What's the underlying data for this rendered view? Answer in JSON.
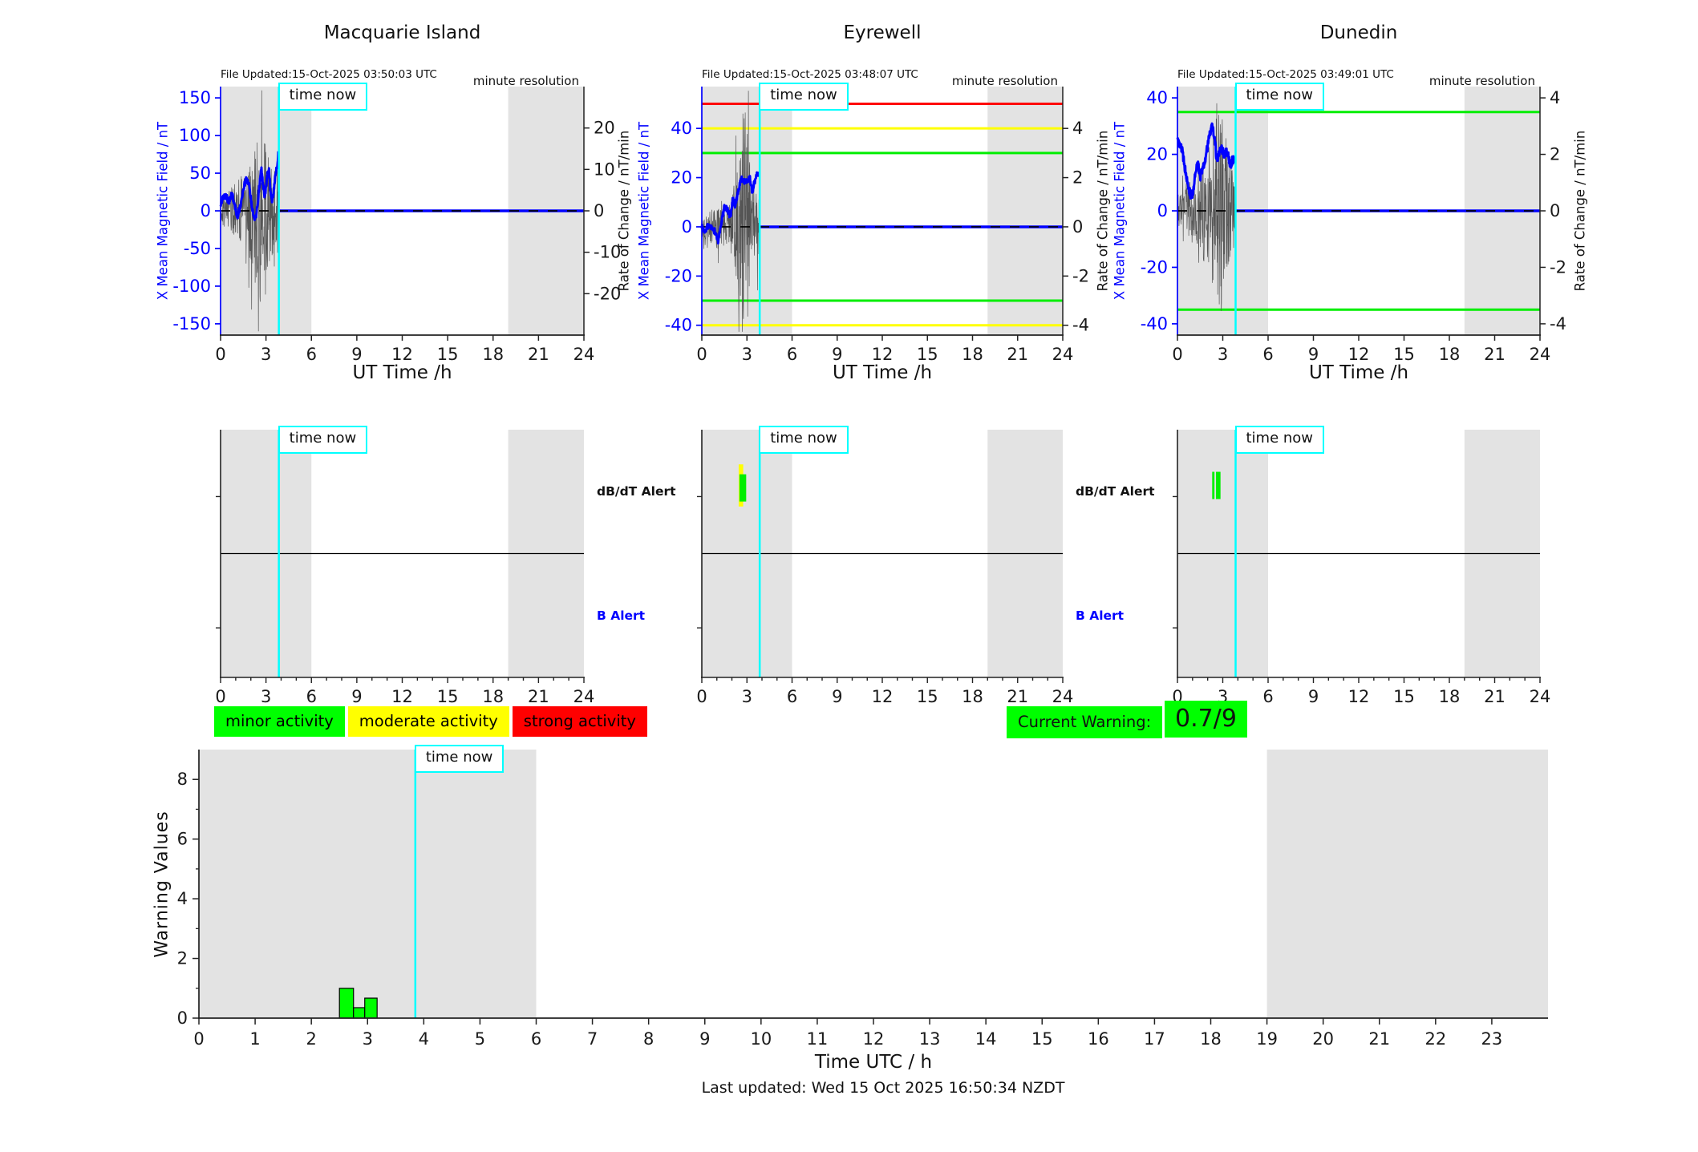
{
  "ui": {
    "time_now_label": "time now",
    "minute_resolution": "minute resolution",
    "ut_time_label": "UT Time /h",
    "left_axis_label": "X Mean Magnetic Field / nT",
    "right_axis_label": "Rate of Change / nT/min",
    "dbdt_alert_label": "dB/dT Alert",
    "b_alert_label": "B Alert",
    "legend": {
      "minor": "minor activity",
      "moderate": "moderate activity",
      "strong": "strong activity"
    },
    "current_warning_label": "Current Warning:",
    "current_warning_value": "0.7/9",
    "bottom_ylabel": "Warning Values",
    "bottom_xlabel": "Time UTC / h",
    "last_updated": "Last updated: Wed 15 Oct 2025 16:50:34 NZDT",
    "colors": {
      "band": "#e3e3e3",
      "blue": "#0000ff",
      "cyan": "#00ffff",
      "green": "#00ee00",
      "legend_green": "#00ff00",
      "yellow": "#ffff00",
      "red": "#ff0000",
      "noise": "#555555",
      "axis": "#1a1a1a"
    }
  },
  "chart_data": {
    "stations": [
      {
        "type": "line",
        "title": "Macquarie Island",
        "file_updated": "File Updated:15-Oct-2025 03:50:03 UTC",
        "x_ticks": [
          0,
          3,
          6,
          9,
          12,
          15,
          18,
          21,
          24
        ],
        "xlim": [
          0,
          24
        ],
        "left_ylim": [
          -165,
          165
        ],
        "left_ticks": [
          -150,
          -100,
          -50,
          0,
          50,
          100,
          150
        ],
        "right_ylim": [
          -30,
          30
        ],
        "right_ticks": [
          -20,
          -10,
          0,
          10,
          20
        ],
        "thresholds": [],
        "gray_bands": [
          [
            0,
            6
          ],
          [
            19,
            24
          ]
        ],
        "time_now": 3.85,
        "data_end": 3.83,
        "blue_series_nT": [
          [
            0,
            5
          ],
          [
            0.15,
            18
          ],
          [
            0.35,
            20
          ],
          [
            0.55,
            12
          ],
          [
            0.75,
            22
          ],
          [
            0.95,
            8
          ],
          [
            1.1,
            -8
          ],
          [
            1.3,
            5
          ],
          [
            1.5,
            30
          ],
          [
            1.7,
            42
          ],
          [
            1.85,
            38
          ],
          [
            2.0,
            18
          ],
          [
            2.15,
            -5
          ],
          [
            2.3,
            -12
          ],
          [
            2.45,
            10
          ],
          [
            2.6,
            40
          ],
          [
            2.7,
            55
          ],
          [
            2.8,
            35
          ],
          [
            2.9,
            22
          ],
          [
            3.0,
            30
          ],
          [
            3.1,
            50
          ],
          [
            3.2,
            55
          ],
          [
            3.3,
            25
          ],
          [
            3.4,
            12
          ],
          [
            3.5,
            25
          ],
          [
            3.6,
            45
          ],
          [
            3.7,
            55
          ],
          [
            3.8,
            70
          ],
          [
            3.83,
            82
          ]
        ],
        "blue_noise_amp": 4,
        "noise_envelope": [
          [
            0,
            3
          ],
          [
            0.5,
            5
          ],
          [
            1,
            7
          ],
          [
            1.5,
            9
          ],
          [
            2,
            12
          ],
          [
            2.3,
            16
          ],
          [
            2.6,
            24
          ],
          [
            2.8,
            20
          ],
          [
            3.1,
            14
          ],
          [
            3.5,
            10
          ],
          [
            3.83,
            13
          ]
        ],
        "noise_units": "right",
        "spike_prob": 0.07,
        "spike_gain": 1.9,
        "seed": 11,
        "alert_bars": []
      },
      {
        "type": "line",
        "title": "Eyrewell",
        "file_updated": "File Updated:15-Oct-2025 03:48:07 UTC",
        "x_ticks": [
          0,
          3,
          6,
          9,
          12,
          15,
          18,
          21,
          24
        ],
        "xlim": [
          0,
          24
        ],
        "left_ylim": [
          -44,
          57
        ],
        "left_ticks": [
          -40,
          -20,
          0,
          20,
          40
        ],
        "right_scale_divisor": 10,
        "right_ticks": [
          -4,
          -2,
          0,
          2,
          4
        ],
        "thresholds": [
          {
            "value": 50,
            "color": "#ff0000"
          },
          {
            "value": 40,
            "color": "#ffff00"
          },
          {
            "value": 30,
            "color": "#00ee00"
          },
          {
            "value": -30,
            "color": "#00ee00"
          },
          {
            "value": -40,
            "color": "#ffff00"
          }
        ],
        "gray_bands": [
          [
            0,
            6
          ],
          [
            19,
            24
          ]
        ],
        "time_now": 3.85,
        "data_end": 3.8,
        "blue_series_nT": [
          [
            0,
            0
          ],
          [
            0.2,
            -2
          ],
          [
            0.45,
            1
          ],
          [
            0.7,
            -1
          ],
          [
            0.9,
            -2
          ],
          [
            1.1,
            -6
          ],
          [
            1.3,
            2
          ],
          [
            1.5,
            8
          ],
          [
            1.7,
            7
          ],
          [
            1.9,
            4
          ],
          [
            2.05,
            11
          ],
          [
            2.2,
            9
          ],
          [
            2.35,
            12
          ],
          [
            2.5,
            17
          ],
          [
            2.6,
            20
          ],
          [
            2.75,
            18
          ],
          [
            2.9,
            19
          ],
          [
            3.05,
            18
          ],
          [
            3.2,
            20
          ],
          [
            3.35,
            14
          ],
          [
            3.5,
            18
          ],
          [
            3.65,
            21
          ],
          [
            3.8,
            21
          ]
        ],
        "blue_noise_amp": 1.2,
        "noise_envelope": [
          [
            0,
            4
          ],
          [
            0.5,
            6
          ],
          [
            1,
            9
          ],
          [
            1.5,
            8
          ],
          [
            2,
            12
          ],
          [
            2.4,
            30
          ],
          [
            2.6,
            45
          ],
          [
            2.9,
            48
          ],
          [
            3.1,
            40
          ],
          [
            3.3,
            20
          ],
          [
            3.6,
            15
          ],
          [
            3.8,
            12
          ]
        ],
        "noise_units": "left",
        "spike_prob": 0.06,
        "spike_gain": 2.0,
        "seed": 22,
        "alert_bars": [
          {
            "x0": 2.45,
            "x1": 2.75,
            "color": "#ffff00",
            "f0": 0.14,
            "f1": 0.31
          },
          {
            "x0": 2.5,
            "x1": 2.95,
            "color": "#00ee00",
            "f0": 0.18,
            "f1": 0.29
          }
        ]
      },
      {
        "type": "line",
        "title": "Dunedin",
        "file_updated": "File Updated:15-Oct-2025 03:49:01 UTC",
        "x_ticks": [
          0,
          3,
          6,
          9,
          12,
          15,
          18,
          21,
          24
        ],
        "xlim": [
          0,
          24
        ],
        "left_ylim": [
          -44,
          44
        ],
        "left_ticks": [
          -40,
          -20,
          0,
          20,
          40
        ],
        "right_scale_divisor": 10,
        "right_ticks": [
          -4,
          -2,
          0,
          2,
          4
        ],
        "thresholds": [
          {
            "value": 35,
            "color": "#00ee00"
          },
          {
            "value": -35,
            "color": "#00ee00"
          }
        ],
        "gray_bands": [
          [
            0,
            6
          ],
          [
            19,
            24
          ]
        ],
        "time_now": 3.85,
        "data_end": 3.82,
        "blue_series_nT": [
          [
            0,
            25
          ],
          [
            0.15,
            23
          ],
          [
            0.3,
            22
          ],
          [
            0.5,
            15
          ],
          [
            0.7,
            9
          ],
          [
            0.9,
            5
          ],
          [
            1.05,
            7
          ],
          [
            1.2,
            14
          ],
          [
            1.35,
            17
          ],
          [
            1.5,
            12
          ],
          [
            1.7,
            15
          ],
          [
            1.9,
            20
          ],
          [
            2.1,
            26
          ],
          [
            2.3,
            30
          ],
          [
            2.45,
            26
          ],
          [
            2.6,
            18
          ],
          [
            2.75,
            20
          ],
          [
            2.9,
            22
          ],
          [
            3.1,
            20
          ],
          [
            3.3,
            21
          ],
          [
            3.5,
            16
          ],
          [
            3.65,
            18
          ],
          [
            3.82,
            19
          ]
        ],
        "blue_noise_amp": 1.5,
        "noise_envelope": [
          [
            0,
            6
          ],
          [
            0.5,
            8
          ],
          [
            1,
            12
          ],
          [
            1.5,
            15
          ],
          [
            2,
            22
          ],
          [
            2.4,
            28
          ],
          [
            2.7,
            38
          ],
          [
            3.0,
            35
          ],
          [
            3.3,
            25
          ],
          [
            3.6,
            15
          ],
          [
            3.82,
            12
          ]
        ],
        "noise_units": "left",
        "spike_prob": 0.08,
        "spike_gain": 1.7,
        "seed": 33,
        "alert_bars": [
          {
            "x0": 2.3,
            "x1": 2.45,
            "color": "#00ee00",
            "f0": 0.17,
            "f1": 0.28
          },
          {
            "x0": 2.55,
            "x1": 2.85,
            "color": "#00ee00",
            "f0": 0.17,
            "f1": 0.28
          }
        ]
      }
    ],
    "alert_axis": {
      "x_ticks_major": [
        0,
        3,
        6,
        9,
        12,
        15,
        18,
        21,
        24
      ],
      "x_ticks_minor_step": 1,
      "gray_bands": [
        [
          0,
          6
        ],
        [
          19,
          24
        ]
      ],
      "time_now": 3.85
    },
    "warning_chart": {
      "type": "bar",
      "ylim": [
        0,
        9
      ],
      "y_ticks": [
        0,
        2,
        4,
        6,
        8
      ],
      "y_ticks_minor": [
        1,
        3,
        5,
        7
      ],
      "x_ticks": [
        0,
        1,
        2,
        3,
        4,
        5,
        6,
        7,
        8,
        9,
        10,
        11,
        12,
        13,
        14,
        15,
        16,
        17,
        18,
        19,
        20,
        21,
        22,
        23
      ],
      "xlim": [
        0,
        24
      ],
      "gray_bands": [
        [
          0,
          6
        ],
        [
          19,
          24
        ]
      ],
      "time_now": 3.85,
      "bars": [
        {
          "x0": 2.5,
          "x1": 2.75,
          "value": 1.0
        },
        {
          "x0": 2.75,
          "x1": 2.95,
          "value": 0.35
        },
        {
          "x0": 2.95,
          "x1": 3.17,
          "value": 0.67
        }
      ],
      "title": "",
      "xlabel": "Time UTC / h",
      "ylabel": "Warning Values"
    }
  }
}
